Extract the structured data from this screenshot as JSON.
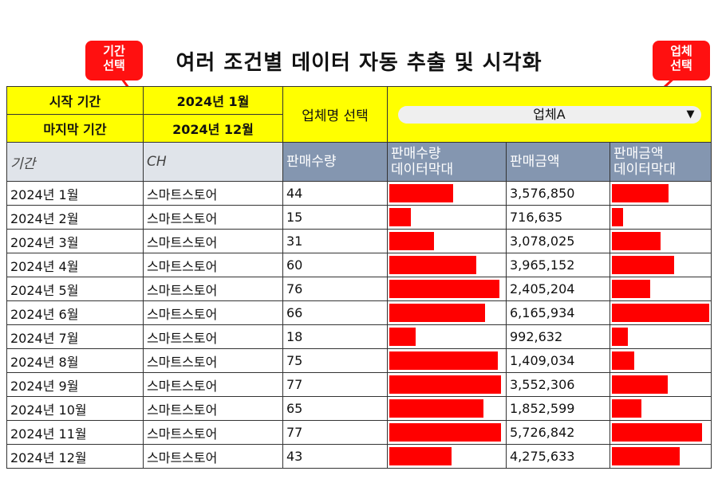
{
  "title": "여러 조건별 데이터 자동 추출 및 시각화",
  "callouts": {
    "period": "기간\n선택",
    "vendor": "업체\n선택"
  },
  "controls": {
    "start_label": "시작 기간",
    "start_value": "2024년 1월",
    "end_label": "마지막 기간",
    "end_value": "2024년 12월",
    "vendor_label": "업체명 선택",
    "vendor_value": "업체A",
    "vendor_caret_icon": "triangle-down-icon"
  },
  "headers": {
    "period": "기간",
    "channel": "CH",
    "qty": "판매수량",
    "qty_bar": "판매수량\n데이터막대",
    "amount": "판매금액",
    "amount_bar": "판매금액\n데이터막대"
  },
  "rows": [
    {
      "period": "2024년 1월",
      "channel": "스마트스토어",
      "qty": "44",
      "amount": "3,576,850"
    },
    {
      "period": "2024년 2월",
      "channel": "스마트스토어",
      "qty": "15",
      "amount": "716,635"
    },
    {
      "period": "2024년 3월",
      "channel": "스마트스토어",
      "qty": "31",
      "amount": "3,078,025"
    },
    {
      "period": "2024년 4월",
      "channel": "스마트스토어",
      "qty": "60",
      "amount": "3,965,152"
    },
    {
      "period": "2024년 5월",
      "channel": "스마트스토어",
      "qty": "76",
      "amount": "2,405,204"
    },
    {
      "period": "2024년 6월",
      "channel": "스마트스토어",
      "qty": "66",
      "amount": "6,165,934"
    },
    {
      "period": "2024년 7월",
      "channel": "스마트스토어",
      "qty": "18",
      "amount": "992,632"
    },
    {
      "period": "2024년 8월",
      "channel": "스마트스토어",
      "qty": "75",
      "amount": "1,409,034"
    },
    {
      "period": "2024년 9월",
      "channel": "스마트스토어",
      "qty": "77",
      "amount": "3,552,306"
    },
    {
      "period": "2024년 10월",
      "channel": "스마트스토어",
      "qty": "65",
      "amount": "1,852,599"
    },
    {
      "period": "2024년 11월",
      "channel": "스마트스토어",
      "qty": "77",
      "amount": "5,726,842"
    },
    {
      "period": "2024년 12월",
      "channel": "스마트스토어",
      "qty": "43",
      "amount": "4,275,633"
    }
  ],
  "colors": {
    "control_bg": "#ffff00",
    "header_bg": "#8496b0",
    "bar": "#ff0000",
    "callout": "#ff1010"
  }
}
